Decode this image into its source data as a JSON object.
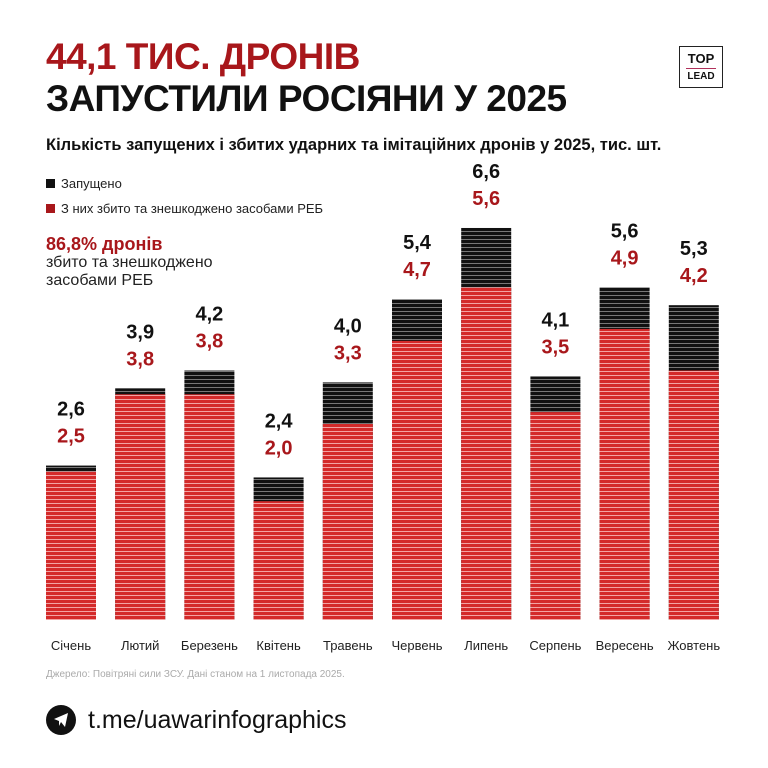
{
  "title_line1": "44,1 ТИС. ДРОНІВ",
  "title_line2": "ЗАПУСТИЛИ РОСІЯНИ У 2025",
  "logo": {
    "top": "TOP",
    "bottom": "LEAD"
  },
  "colors": {
    "launched": "#111111",
    "downed": "#c81e1e",
    "accent": "#a8171b"
  },
  "highlight": {
    "value": "86,8% дронів",
    "text": "збито та знешкоджено засобами РЕБ"
  },
  "source": "Джерело: Повітряні сили ЗСУ. Дані станом на 1 листопада 2025.",
  "telegram": {
    "icon": "telegram-icon",
    "link": "t.me/uawarinfographics"
  },
  "chart_data": {
    "type": "bar",
    "title": "Кількість запущених і збитих ударних та імітаційних дронів у 2025, тис. шт.",
    "categories": [
      "Січень",
      "Лютий",
      "Березень",
      "Квітень",
      "Травень",
      "Червень",
      "Липень",
      "Серпень",
      "Вересень",
      "Жовтень"
    ],
    "series": [
      {
        "name": "Запущено",
        "values": [
          2.6,
          3.9,
          4.2,
          2.4,
          4.0,
          5.4,
          6.6,
          4.1,
          5.6,
          5.3
        ],
        "labels": [
          "2,6",
          "3,9",
          "4,2",
          "2,4",
          "4,0",
          "5,4",
          "6,6",
          "4,1",
          "5,6",
          "5,3"
        ]
      },
      {
        "name": "З них збито та знешкоджено засобами РЕБ",
        "values": [
          2.5,
          3.8,
          3.8,
          2.0,
          3.3,
          4.7,
          5.6,
          3.5,
          4.9,
          4.2
        ],
        "labels": [
          "2,5",
          "3,8",
          "3,8",
          "2,0",
          "3,3",
          "4,7",
          "5,6",
          "3,5",
          "4,9",
          "4,2"
        ]
      }
    ],
    "legend": "top-left",
    "grid": false,
    "ylim": [
      0,
      6.6
    ]
  }
}
